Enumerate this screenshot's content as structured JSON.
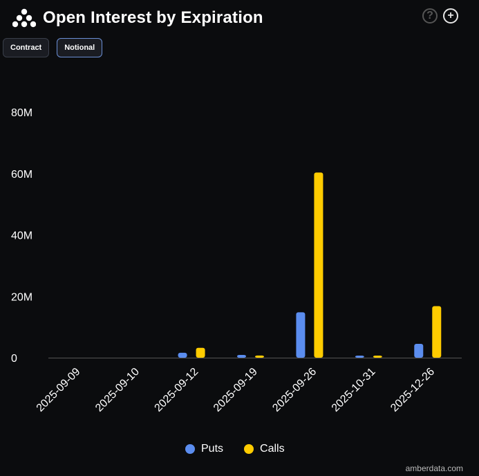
{
  "header": {
    "title": "Open Interest by Expiration",
    "logo": "amberdata-logo",
    "help_icon": "?",
    "add_icon": "+"
  },
  "toggles": {
    "contract_label": "Contract",
    "notional_label": "Notional"
  },
  "footer": {
    "brand": "amberdata.com"
  },
  "colors": {
    "puts": "#5b8def",
    "calls": "#ffcc00",
    "background": "#0b0c0e"
  },
  "chart_data": {
    "type": "bar",
    "title": "Open Interest by Expiration",
    "xlabel": "",
    "ylabel": "",
    "categories": [
      "2025-09-09",
      "2025-09-10",
      "2025-09-12",
      "2025-09-19",
      "2025-09-26",
      "2025-10-31",
      "2025-12-26"
    ],
    "series": [
      {
        "name": "Puts",
        "values": [
          0,
          0,
          1.6,
          0.9,
          14.8,
          0.6,
          4.5
        ]
      },
      {
        "name": "Calls",
        "values": [
          0,
          0,
          3.2,
          0.7,
          60.3,
          0.3,
          16.8
        ]
      }
    ],
    "ylim": [
      0,
      80
    ],
    "yticks": [
      0,
      20,
      40,
      60,
      80
    ],
    "ytick_labels": [
      "0",
      "20M",
      "40M",
      "60M",
      "80M"
    ],
    "legend": "bottom-center"
  }
}
